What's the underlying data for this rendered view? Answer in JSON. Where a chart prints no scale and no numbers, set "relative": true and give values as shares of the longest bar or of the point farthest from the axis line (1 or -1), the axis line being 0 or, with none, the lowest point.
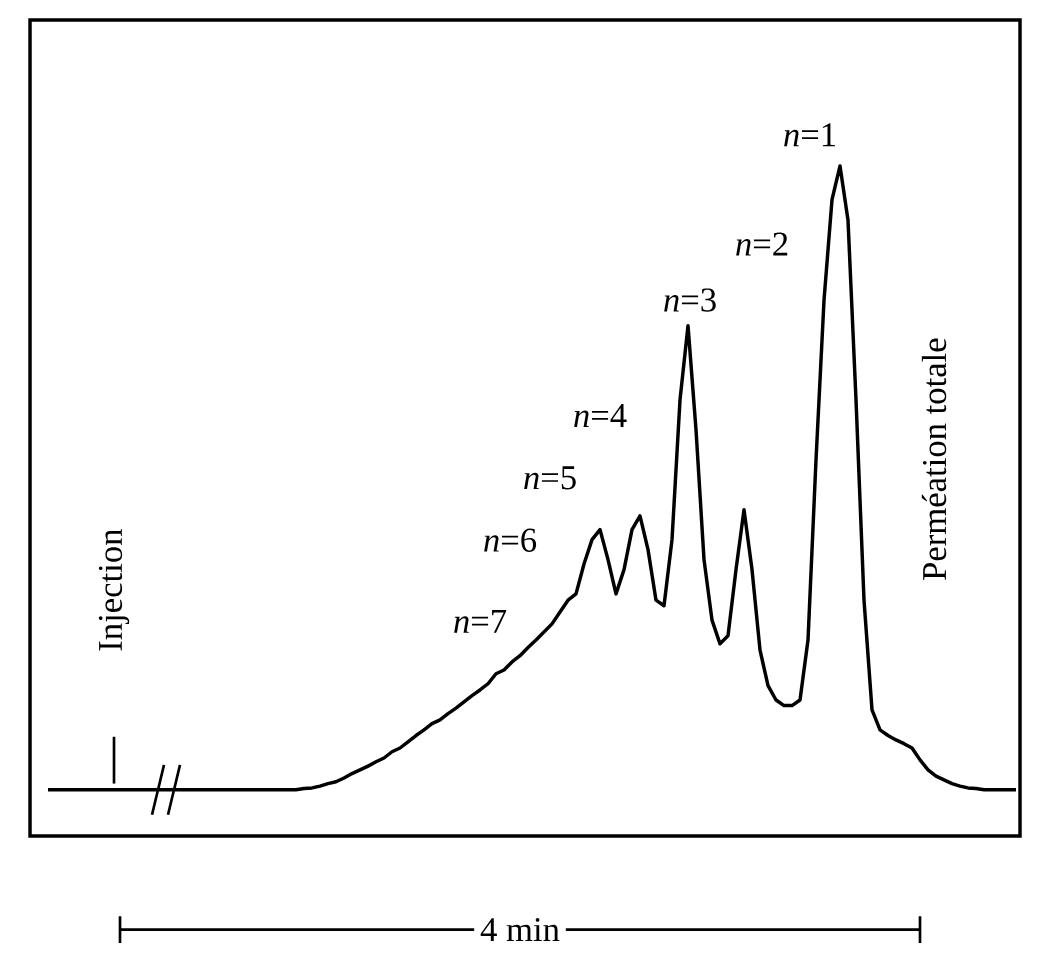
{
  "chart_data": {
    "type": "line",
    "relative": true,
    "categories": [
      null,
      null,
      null,
      null,
      null,
      null,
      null,
      null,
      null,
      null,
      null,
      null,
      null,
      null,
      null,
      null,
      null,
      null,
      null,
      null,
      null,
      null,
      null,
      null,
      null,
      null,
      null,
      null,
      null,
      null,
      null,
      null,
      null,
      null,
      null,
      null,
      null,
      null,
      null,
      null,
      null,
      null,
      null,
      null,
      null,
      null,
      null,
      null,
      null,
      null,
      null,
      null,
      null,
      null,
      null,
      null,
      null,
      null,
      null,
      null,
      null,
      null,
      null,
      null,
      null,
      null,
      null,
      null,
      null,
      null,
      null,
      null,
      null,
      null,
      null,
      null,
      null,
      null,
      null,
      null,
      null,
      null,
      null,
      null,
      null,
      null,
      null,
      null,
      null,
      null,
      null,
      null,
      null,
      null,
      null,
      null,
      null,
      null,
      null,
      null,
      null,
      null,
      null,
      null,
      null,
      null,
      null,
      null,
      null,
      null,
      null,
      null,
      null,
      null,
      null,
      null,
      null,
      null,
      null,
      null,
      null,
      null
    ],
    "series": [
      {
        "color": "#000000",
        "values": [
          0,
          0,
          0,
          0,
          0,
          0,
          0,
          0,
          0,
          0,
          0,
          0,
          0,
          0,
          0,
          0,
          0,
          0,
          0,
          0,
          0,
          0,
          0,
          0,
          0,
          0,
          0,
          0,
          0,
          0,
          0,
          0,
          0.002,
          0.003,
          0.006,
          0.01,
          0.013,
          0.019,
          0.026,
          0.032,
          0.038,
          0.045,
          0.051,
          0.061,
          0.067,
          0.077,
          0.087,
          0.096,
          0.106,
          0.112,
          0.122,
          0.131,
          0.141,
          0.151,
          0.16,
          0.17,
          0.186,
          0.192,
          0.205,
          0.215,
          0.228,
          0.24,
          0.253,
          0.266,
          0.285,
          0.304,
          0.314,
          0.362,
          0.401,
          0.417,
          0.369,
          0.314,
          0.353,
          0.417,
          0.439,
          0.385,
          0.304,
          0.295,
          0.401,
          0.625,
          0.744,
          0.577,
          0.369,
          0.272,
          0.234,
          0.247,
          0.353,
          0.449,
          0.353,
          0.224,
          0.167,
          0.144,
          0.135,
          0.135,
          0.144,
          0.24,
          0.529,
          0.785,
          0.946,
          1,
          0.913,
          0.625,
          0.304,
          0.128,
          0.096,
          0.087,
          0.08,
          0.074,
          0.067,
          0.048,
          0.032,
          0.022,
          0.016,
          0.01,
          0.006,
          0.003,
          0.002,
          0,
          0,
          0,
          0,
          0
        ]
      }
    ],
    "line_style": "solid",
    "annotations": [
      "Injection",
      "*n*=7",
      "*n*=6",
      "*n*=5",
      "*n*=4",
      "*n*=3",
      "*n*=2",
      "*n*=1",
      "Perméation totale",
      "4 min"
    ]
  }
}
